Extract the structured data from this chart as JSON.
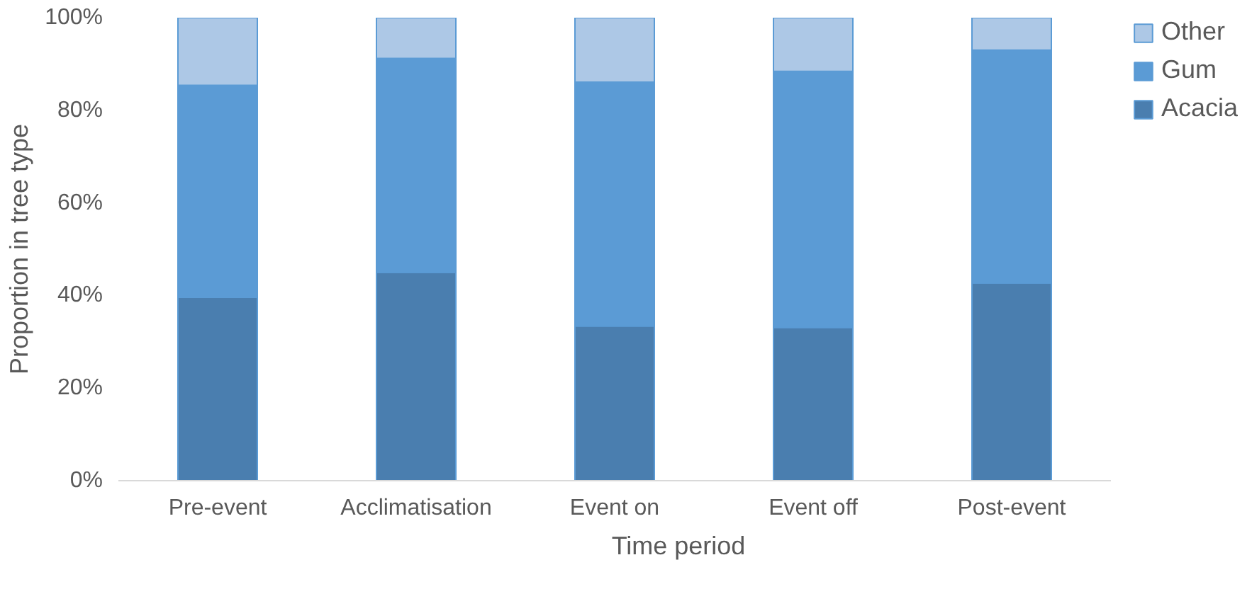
{
  "chart_data": {
    "type": "bar",
    "stacked": true,
    "xlabel": "Time period",
    "ylabel": "Proportion in tree type",
    "categories": [
      "Pre-event",
      "Acclimatisation",
      "Event on",
      "Event off",
      "Post-event"
    ],
    "series": [
      {
        "name": "Acacia",
        "color": "#4a7eaf",
        "values": [
          39.6,
          45.0,
          33.4,
          33.1,
          42.7
        ]
      },
      {
        "name": "Gum",
        "color": "#5b9bd5",
        "values": [
          45.8,
          46.2,
          52.7,
          55.3,
          50.3
        ]
      },
      {
        "name": "Other",
        "color": "#adc8e6",
        "values": [
          14.6,
          8.8,
          13.9,
          11.6,
          7.0
        ]
      }
    ],
    "ylim": [
      0,
      100
    ],
    "yticks": [
      {
        "value": 0,
        "label": "0%"
      },
      {
        "value": 20,
        "label": "20%"
      },
      {
        "value": 40,
        "label": "40%"
      },
      {
        "value": 60,
        "label": "60%"
      },
      {
        "value": 80,
        "label": "80%"
      },
      {
        "value": 100,
        "label": "100%"
      }
    ],
    "grid": false,
    "legend": "top right"
  }
}
